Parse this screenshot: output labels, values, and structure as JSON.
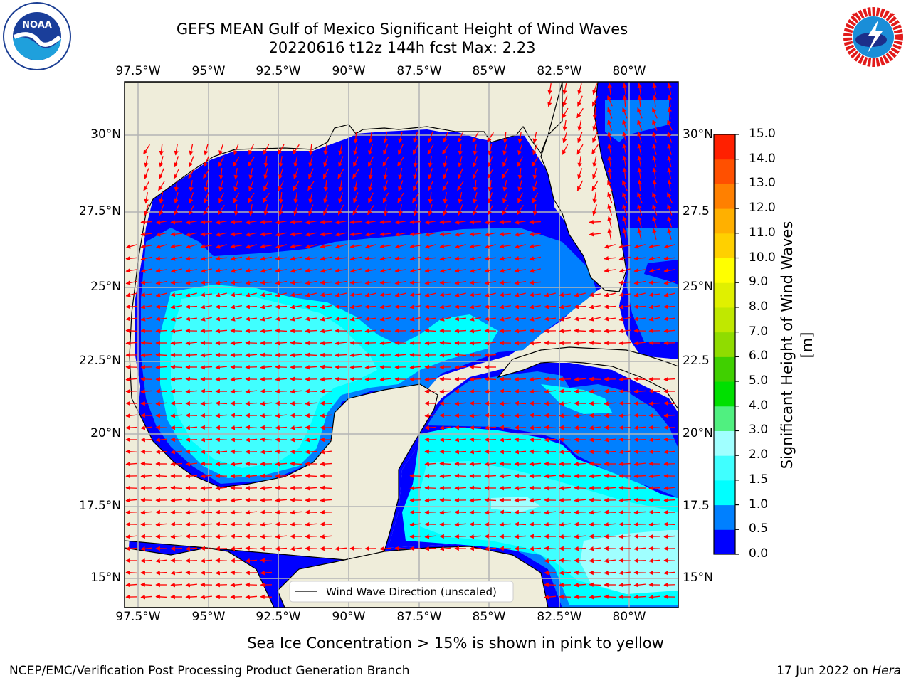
{
  "header": {
    "title_line1": "GEFS MEAN Gulf of Mexico Significant Height of Wind Waves",
    "title_line2": "20220616 t12z 144h fcst   Max: 2.23"
  },
  "logos": {
    "noaa_text": "NOAA",
    "noaa_ring_text": "NATIONAL OCEANIC AND ATMOSPHERIC ADMINISTRATION · U.S. DEPARTMENT OF COMMERCE",
    "nws_ring_text": "NATIONAL WEATHER SERVICE"
  },
  "map": {
    "lon_labels": [
      "97.5°W",
      "95°W",
      "92.5°W",
      "90°W",
      "87.5°W",
      "85°W",
      "82.5°W",
      "80°W"
    ],
    "lat_labels": [
      "30°N",
      "27.5°N",
      "25°N",
      "22.5°N",
      "20°N",
      "17.5°N",
      "15°N"
    ],
    "lat_labels_right": [
      "30°N",
      "27.5",
      "25°N",
      "22.5",
      "20°N",
      "17.5",
      "15°N"
    ],
    "legend_label": "Wind Wave Direction (unscaled)",
    "colors": {
      "land": "#efedda",
      "coast": "#000000",
      "arrow": "#ff0000",
      "grid": "#b4b4b4"
    }
  },
  "colorbar": {
    "title": "Significant Height of Wind Waves [m]",
    "ticks": [
      "0.0",
      "0.5",
      "1.0",
      "1.5",
      "2.0",
      "3.0",
      "4.0",
      "5.0",
      "6.0",
      "7.0",
      "8.0",
      "9.0",
      "10.0",
      "11.0",
      "12.0",
      "13.0",
      "14.0",
      "15.0"
    ],
    "colors": [
      "#0000ff",
      "#0080ff",
      "#00ffff",
      "#40ffff",
      "#a0ffff",
      "#50f080",
      "#00e000",
      "#40d000",
      "#90dc00",
      "#c0e800",
      "#e0f000",
      "#ffff00",
      "#ffd000",
      "#ffb000",
      "#ff8000",
      "#ff5000",
      "#ff2000"
    ]
  },
  "footer": {
    "note": "Sea Ice Concentration > 15% is shown in pink to yellow",
    "credit": "NCEP/EMC/Verification Post Processing Product Generation Branch",
    "date": "17 Jun 2022 on",
    "host": "Hera"
  }
}
